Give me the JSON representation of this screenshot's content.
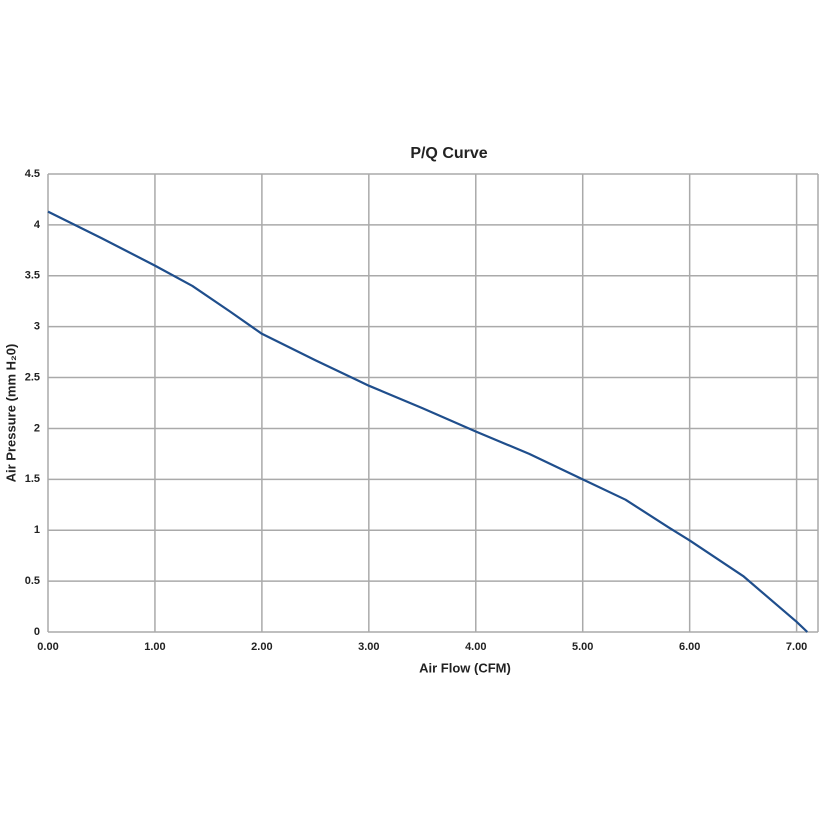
{
  "chart_data": {
    "type": "line",
    "title": "P/Q Curve",
    "x_label": "Air Flow (CFM)",
    "y_label": "Air Pressure (mm H₂0)",
    "x": [
      0,
      0.5,
      1.0,
      1.35,
      1.7,
      2.0,
      2.5,
      3.0,
      3.5,
      4.0,
      4.5,
      5.0,
      5.4,
      5.8,
      6.0,
      6.5,
      7.0,
      7.1
    ],
    "series": [
      {
        "name": "P/Q",
        "color": "#1f4e8c",
        "values": [
          4.13,
          3.87,
          3.6,
          3.4,
          3.15,
          2.93,
          2.67,
          2.42,
          2.2,
          1.97,
          1.75,
          1.5,
          1.3,
          1.03,
          0.9,
          0.55,
          0.1,
          0
        ]
      }
    ],
    "xlim": [
      0,
      7.2
    ],
    "xticks": [
      {
        "value": 0,
        "label": "0.00"
      },
      {
        "value": 1,
        "label": "1.00"
      },
      {
        "value": 2,
        "label": "2.00"
      },
      {
        "value": 3,
        "label": "3.00"
      },
      {
        "value": 4,
        "label": "4.00"
      },
      {
        "value": 5,
        "label": "5.00"
      },
      {
        "value": 6,
        "label": "6.00"
      },
      {
        "value": 7,
        "label": "7.00"
      }
    ],
    "ylim": [
      0,
      4.5
    ],
    "yticks": [
      0,
      0.5,
      1,
      1.5,
      2,
      2.5,
      3,
      3.5,
      4,
      4.5
    ],
    "grid": true
  }
}
